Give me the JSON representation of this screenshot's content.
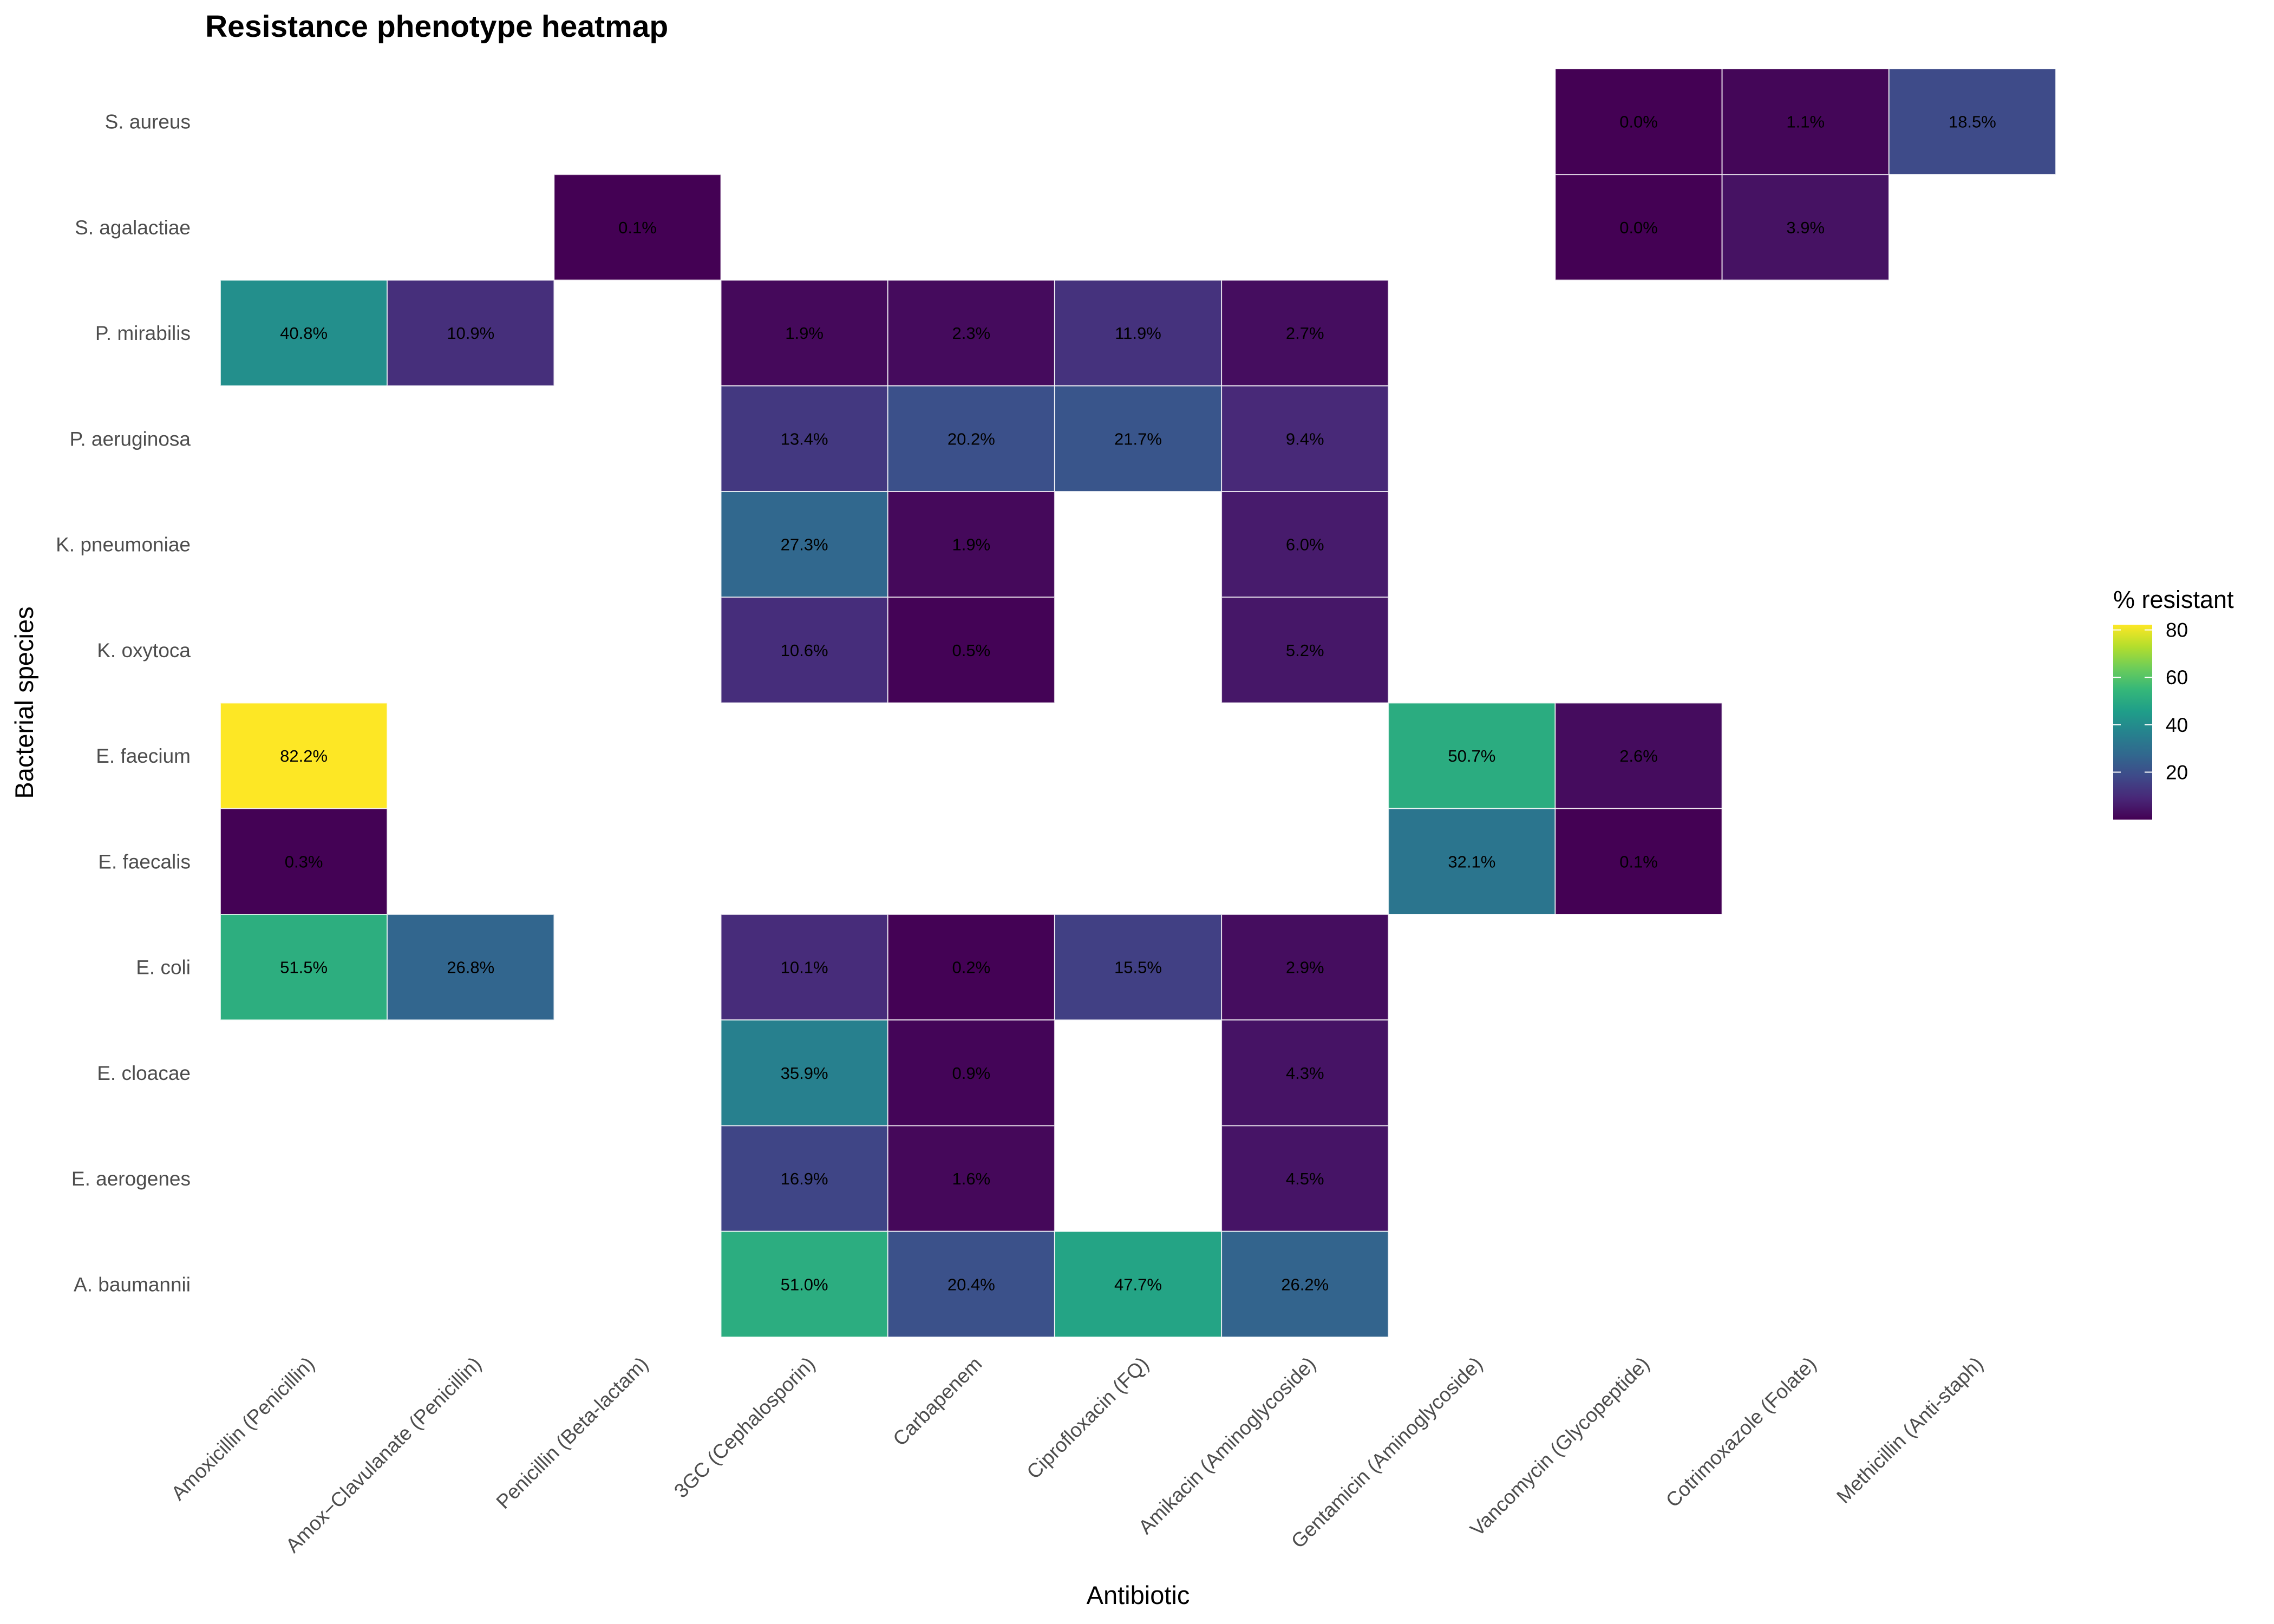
{
  "chart_data": {
    "type": "heatmap",
    "title": "Resistance phenotype heatmap",
    "xlabel": "Antibiotic",
    "ylabel": "Bacterial species",
    "x_categories": [
      "Amoxicillin (Penicillin)",
      "Amox−Clavulanate (Penicillin)",
      "Penicillin (Beta-lactam)",
      "3GC (Cephalosporin)",
      "Carbapenem",
      "Ciprofloxacin (FQ)",
      "Amikacin (Aminoglycoside)",
      "Gentamicin (Aminoglycoside)",
      "Vancomycin (Glycopeptide)",
      "Cotrimoxazole (Folate)",
      "Methicillin (Anti-staph)"
    ],
    "y_categories": [
      "S. aureus",
      "S. agalactiae",
      "P. mirabilis",
      "P. aeruginosa",
      "K. pneumoniae",
      "K. oxytoca",
      "E. faecium",
      "E. faecalis",
      "E. coli",
      "E. cloacae",
      "E. aerogenes",
      "A. baumannii"
    ],
    "values": [
      [
        null,
        null,
        null,
        null,
        null,
        null,
        null,
        null,
        0.0,
        1.1,
        18.5
      ],
      [
        null,
        null,
        0.1,
        null,
        null,
        null,
        null,
        null,
        0.0,
        3.9,
        null
      ],
      [
        40.8,
        10.9,
        null,
        1.9,
        2.3,
        11.9,
        2.7,
        null,
        null,
        null,
        null
      ],
      [
        null,
        null,
        null,
        13.4,
        20.2,
        21.7,
        9.4,
        null,
        null,
        null,
        null
      ],
      [
        null,
        null,
        null,
        27.3,
        1.9,
        null,
        6.0,
        null,
        null,
        null,
        null
      ],
      [
        null,
        null,
        null,
        10.6,
        0.5,
        null,
        5.2,
        null,
        null,
        null,
        null
      ],
      [
        82.2,
        null,
        null,
        null,
        null,
        null,
        null,
        50.7,
        2.6,
        null,
        null
      ],
      [
        0.3,
        null,
        null,
        null,
        null,
        null,
        null,
        32.1,
        0.1,
        null,
        null
      ],
      [
        51.5,
        26.8,
        null,
        10.1,
        0.2,
        15.5,
        2.9,
        null,
        null,
        null,
        null
      ],
      [
        null,
        null,
        null,
        35.9,
        0.9,
        null,
        4.3,
        null,
        null,
        null,
        null
      ],
      [
        null,
        null,
        null,
        16.9,
        1.6,
        null,
        4.5,
        null,
        null,
        null,
        null
      ],
      [
        null,
        null,
        null,
        51.0,
        20.4,
        47.7,
        26.2,
        null,
        null,
        null,
        null
      ]
    ],
    "value_suffix": "%",
    "colorscale": "viridis",
    "color_range": [
      0,
      82.2
    ],
    "legend": {
      "title": "% resistant",
      "ticks": [
        20,
        40,
        60,
        80
      ],
      "tick_labels": [
        "20",
        "40",
        "60",
        "80"
      ],
      "placement": "right"
    },
    "grid": false
  },
  "colors": {
    "background": "#FFFFFF",
    "tick_text": "#4D4D4D",
    "title_text": "#000000",
    "cell_border": "#FFFFFF",
    "viridis": [
      "#440154",
      "#482878",
      "#3E4A89",
      "#31688E",
      "#26828E",
      "#1F9E89",
      "#35B779",
      "#6DCD59",
      "#B4DE2C",
      "#FDE725"
    ]
  }
}
